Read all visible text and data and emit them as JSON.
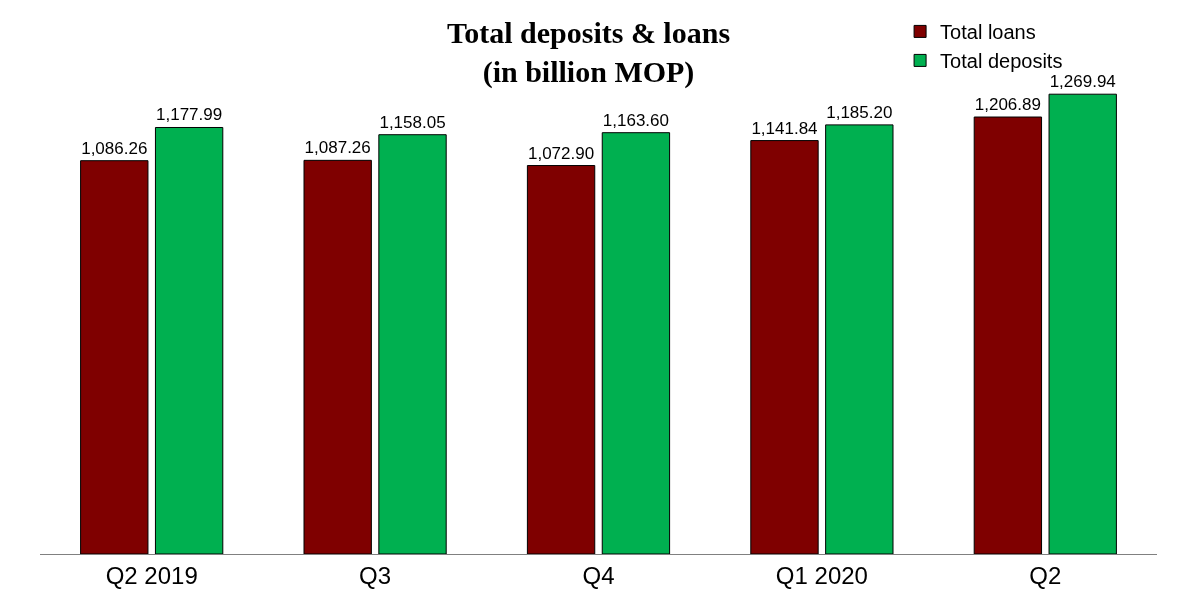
{
  "chart_data": {
    "type": "bar",
    "title": "Total deposits & loans\n(in billion MOP)",
    "categories": [
      "Q2 2019",
      "Q3",
      "Q4",
      "Q1 2020",
      "Q2"
    ],
    "series": [
      {
        "name": "Total loans",
        "color": "#7f0000",
        "values": [
          1086.26,
          1087.26,
          1072.9,
          1141.84,
          1206.89
        ],
        "value_labels": [
          "1,086.26",
          "1,087.26",
          "1,072.90",
          "1,141.84",
          "1,206.89"
        ]
      },
      {
        "name": "Total deposits",
        "color": "#00b050",
        "values": [
          1177.99,
          1158.05,
          1163.6,
          1185.2,
          1269.94
        ],
        "value_labels": [
          "1,177.99",
          "1,158.05",
          "1,163.60",
          "1,185.20",
          "1,269.94"
        ]
      }
    ],
    "tick_labels": "x",
    "legend": "top right"
  }
}
